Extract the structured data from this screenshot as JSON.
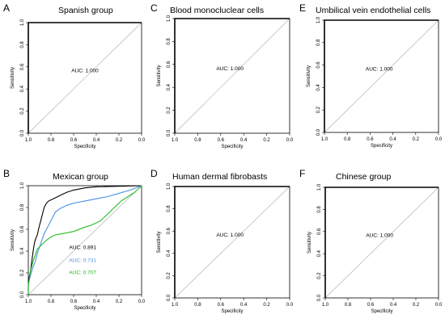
{
  "chart_data": [
    {
      "type": "line",
      "letter": "A",
      "title": "Spanish group",
      "xlabel": "Specificity",
      "ylabel": "Sensitivity",
      "x_reversed": true,
      "xlim": [
        1.0,
        0.0
      ],
      "ylim": [
        0.0,
        1.0
      ],
      "xticks": [
        "1.0",
        "0.8",
        "0.6",
        "0.4",
        "0.2",
        "0.0"
      ],
      "yticks": [
        "0.0",
        "0.2",
        "0.4",
        "0.6",
        "0.8",
        "1.0"
      ],
      "reference_line": true,
      "series": [
        {
          "color": "#000000",
          "auc_label": "AUC: 1.000",
          "points": [
            [
              1.0,
              0.0
            ],
            [
              1.0,
              1.0
            ],
            [
              0.0,
              1.0
            ]
          ]
        }
      ]
    },
    {
      "type": "line",
      "letter": "B",
      "title": "Mexican group",
      "xlabel": "Specificity",
      "ylabel": "Sensitivity",
      "x_reversed": true,
      "xlim": [
        1.0,
        0.0
      ],
      "ylim": [
        0.0,
        1.0
      ],
      "xticks": [
        "1.0",
        "0.8",
        "0.6",
        "0.4",
        "0.2",
        "0.0"
      ],
      "yticks": [
        "0.0",
        "0.2",
        "0.4",
        "0.6",
        "0.8",
        "1.0"
      ],
      "reference_line": true,
      "series": [
        {
          "color": "#000000",
          "auc_label": "AUC: 0.891",
          "points": [
            [
              1.0,
              0.0
            ],
            [
              1.0,
              0.12
            ],
            [
              0.98,
              0.22
            ],
            [
              0.97,
              0.3
            ],
            [
              0.96,
              0.38
            ],
            [
              0.95,
              0.45
            ],
            [
              0.94,
              0.5
            ],
            [
              0.92,
              0.55
            ],
            [
              0.91,
              0.6
            ],
            [
              0.9,
              0.64
            ],
            [
              0.89,
              0.68
            ],
            [
              0.88,
              0.72
            ],
            [
              0.87,
              0.76
            ],
            [
              0.86,
              0.8
            ],
            [
              0.84,
              0.84
            ],
            [
              0.82,
              0.86
            ],
            [
              0.78,
              0.88
            ],
            [
              0.74,
              0.9
            ],
            [
              0.7,
              0.92
            ],
            [
              0.66,
              0.94
            ],
            [
              0.6,
              0.96
            ],
            [
              0.5,
              0.98
            ],
            [
              0.4,
              0.99
            ],
            [
              0.0,
              1.0
            ]
          ]
        },
        {
          "color": "#4a90e2",
          "auc_label": "AUC: 0.731",
          "points": [
            [
              1.0,
              0.0
            ],
            [
              1.0,
              0.1
            ],
            [
              0.98,
              0.18
            ],
            [
              0.96,
              0.25
            ],
            [
              0.94,
              0.3
            ],
            [
              0.92,
              0.38
            ],
            [
              0.9,
              0.44
            ],
            [
              0.88,
              0.5
            ],
            [
              0.86,
              0.56
            ],
            [
              0.84,
              0.6
            ],
            [
              0.82,
              0.64
            ],
            [
              0.8,
              0.68
            ],
            [
              0.78,
              0.72
            ],
            [
              0.76,
              0.76
            ],
            [
              0.72,
              0.79
            ],
            [
              0.66,
              0.82
            ],
            [
              0.6,
              0.84
            ],
            [
              0.5,
              0.86
            ],
            [
              0.4,
              0.88
            ],
            [
              0.3,
              0.9
            ],
            [
              0.2,
              0.93
            ],
            [
              0.1,
              0.96
            ],
            [
              0.0,
              1.0
            ]
          ]
        },
        {
          "color": "#22bb22",
          "auc_label": "AUC: 0.707",
          "points": [
            [
              1.0,
              0.0
            ],
            [
              1.0,
              0.08
            ],
            [
              0.99,
              0.15
            ],
            [
              0.98,
              0.22
            ],
            [
              0.96,
              0.3
            ],
            [
              0.94,
              0.36
            ],
            [
              0.92,
              0.42
            ],
            [
              0.88,
              0.46
            ],
            [
              0.84,
              0.5
            ],
            [
              0.8,
              0.53
            ],
            [
              0.76,
              0.55
            ],
            [
              0.7,
              0.56
            ],
            [
              0.6,
              0.58
            ],
            [
              0.5,
              0.62
            ],
            [
              0.44,
              0.64
            ],
            [
              0.36,
              0.68
            ],
            [
              0.3,
              0.74
            ],
            [
              0.24,
              0.8
            ],
            [
              0.18,
              0.86
            ],
            [
              0.12,
              0.9
            ],
            [
              0.06,
              0.94
            ],
            [
              0.0,
              1.0
            ]
          ]
        }
      ]
    },
    {
      "type": "line",
      "letter": "C",
      "title": "Blood monocluclear cells",
      "xlabel": "Specificity",
      "ylabel": "Sensitivity",
      "x_reversed": true,
      "xlim": [
        1.0,
        0.0
      ],
      "ylim": [
        0.0,
        1.0
      ],
      "xticks": [
        "1.0",
        "0.8",
        "0.6",
        "0.4",
        "0.2",
        "0.0"
      ],
      "yticks": [
        "0.0",
        "0.2",
        "0.4",
        "0.6",
        "0.8",
        "1.0"
      ],
      "reference_line": true,
      "series": [
        {
          "color": "#000000",
          "auc_label": "AUC: 1.000",
          "points": [
            [
              1.0,
              0.0
            ],
            [
              1.0,
              1.0
            ],
            [
              0.0,
              1.0
            ]
          ]
        }
      ]
    },
    {
      "type": "line",
      "letter": "D",
      "title": "Human dermal fibrobasts",
      "xlabel": "Specificity",
      "ylabel": "Sensitivity",
      "x_reversed": true,
      "xlim": [
        1.0,
        0.0
      ],
      "ylim": [
        0.0,
        1.0
      ],
      "xticks": [
        "1.0",
        "0.8",
        "0.6",
        "0.4",
        "0.2",
        "0.0"
      ],
      "yticks": [
        "0.0",
        "0.2",
        "0.4",
        "0.6",
        "0.8",
        "1.0"
      ],
      "reference_line": true,
      "series": [
        {
          "color": "#000000",
          "auc_label": "AUC: 1.000",
          "points": [
            [
              1.0,
              0.0
            ],
            [
              1.0,
              1.0
            ],
            [
              0.0,
              1.0
            ]
          ]
        }
      ]
    },
    {
      "type": "line",
      "letter": "E",
      "title": "Umbilical vein endothelial cells",
      "xlabel": "Specificity",
      "ylabel": "Sensitivity",
      "x_reversed": true,
      "xlim": [
        1.0,
        0.0
      ],
      "ylim": [
        0.0,
        1.0
      ],
      "xticks": [
        "1.0",
        "0.8",
        "0.6",
        "0.4",
        "0.2",
        "0.0"
      ],
      "yticks": [
        "0.0",
        "0.2",
        "0.4",
        "0.6",
        "0.8",
        "1.0"
      ],
      "reference_line": true,
      "series": [
        {
          "color": "#000000",
          "auc_label": "AUC: 1.000",
          "points": [
            [
              1.0,
              0.0
            ],
            [
              1.0,
              1.0
            ],
            [
              0.0,
              1.0
            ]
          ]
        }
      ]
    },
    {
      "type": "line",
      "letter": "F",
      "title": "Chinese group",
      "xlabel": "Specificity",
      "ylabel": "Sensitivity",
      "x_reversed": true,
      "xlim": [
        1.0,
        0.0
      ],
      "ylim": [
        0.0,
        1.0
      ],
      "xticks": [
        "1.0",
        "0.8",
        "0.6",
        "0.4",
        "0.2",
        "0.0"
      ],
      "yticks": [
        "0.0",
        "0.2",
        "0.4",
        "0.6",
        "0.8",
        "1.0"
      ],
      "reference_line": true,
      "series": [
        {
          "color": "#000000",
          "auc_label": "AUC: 1.000",
          "points": [
            [
              1.0,
              0.0
            ],
            [
              1.0,
              1.0
            ],
            [
              0.0,
              1.0
            ]
          ]
        }
      ]
    }
  ]
}
